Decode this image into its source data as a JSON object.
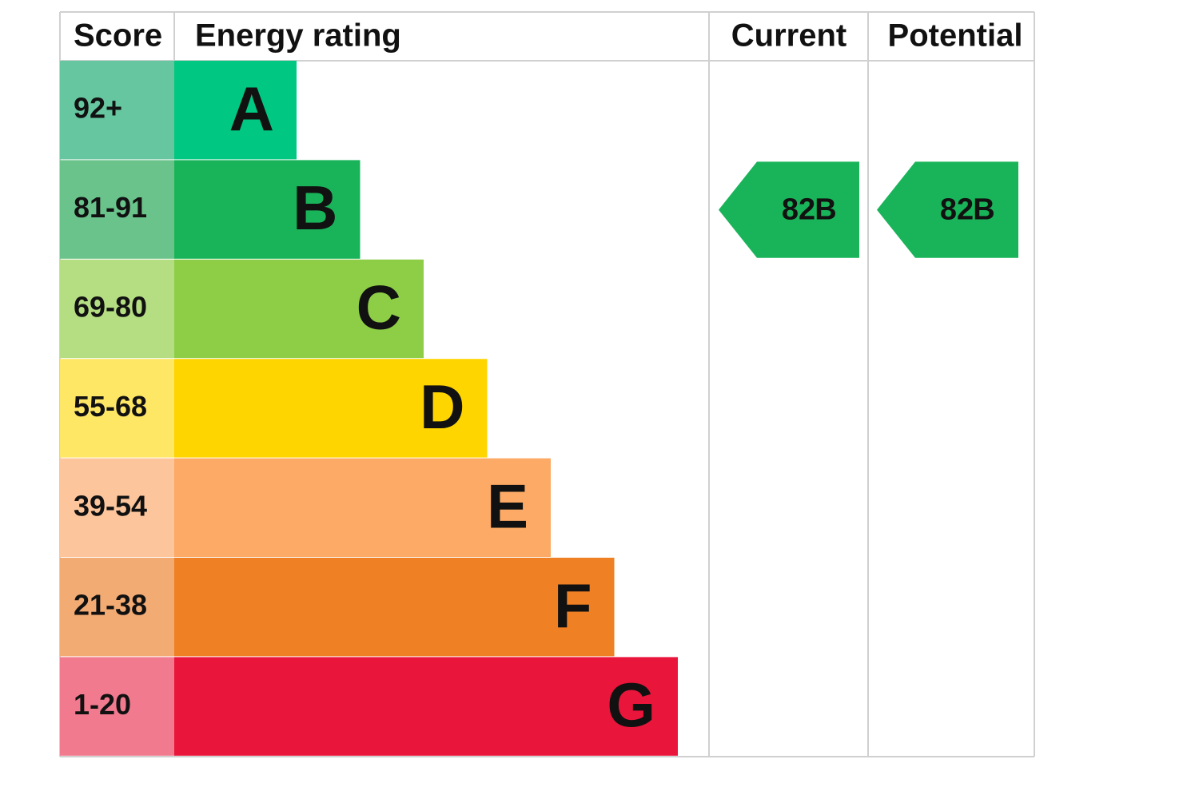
{
  "header": {
    "score": "Score",
    "energy_rating": "Energy rating",
    "current": "Current",
    "potential": "Potential"
  },
  "bands": [
    {
      "score": "92+",
      "letter": "A",
      "score_color": "#66c6a0",
      "color": "#00c781"
    },
    {
      "score": "81-91",
      "letter": "B",
      "score_color": "#6ac38a",
      "color": "#19b459"
    },
    {
      "score": "69-80",
      "letter": "C",
      "score_color": "#b5de82",
      "color": "#8dce46"
    },
    {
      "score": "55-68",
      "letter": "D",
      "score_color": "#ffe766",
      "color": "#ffd500"
    },
    {
      "score": "39-54",
      "letter": "E",
      "score_color": "#fcc59b",
      "color": "#fcaa65"
    },
    {
      "score": "21-38",
      "letter": "F",
      "score_color": "#f3ab74",
      "color": "#ef8023"
    },
    {
      "score": "1-20",
      "letter": "G",
      "score_color": "#f17a8e",
      "color": "#e9153b"
    }
  ],
  "current": {
    "score": "82",
    "rating": "B",
    "color": "#19b459"
  },
  "potential": {
    "score": "82",
    "rating": "B",
    "color": "#19b459"
  }
}
